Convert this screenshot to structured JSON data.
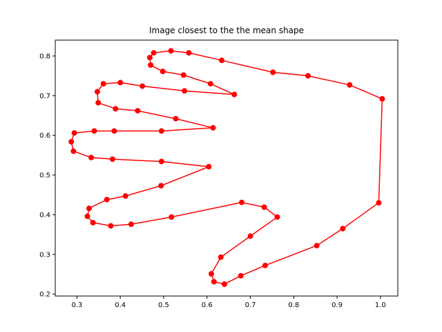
{
  "chart_data": {
    "type": "line",
    "title": "Image closest to the the mean shape",
    "xlabel": "",
    "ylabel": "",
    "xlim": [
      0.25,
      1.04
    ],
    "ylim": [
      0.195,
      0.84
    ],
    "x_ticks": [
      0.3,
      0.4,
      0.5,
      0.6,
      0.7,
      0.8,
      0.9,
      1.0
    ],
    "x_tick_labels": [
      "0.3",
      "0.4",
      "0.5",
      "0.6",
      "0.7",
      "0.8",
      "0.9",
      "1.0"
    ],
    "y_ticks": [
      0.2,
      0.3,
      0.4,
      0.5,
      0.6,
      0.7,
      0.8
    ],
    "y_tick_labels": [
      "0.2",
      "0.3",
      "0.4",
      "0.5",
      "0.6",
      "0.7",
      "0.8"
    ],
    "grid": false,
    "marker": "circle",
    "color": "#ff0000",
    "series": [
      {
        "x": [
          0.64,
          0.616,
          0.61,
          0.632,
          0.7,
          0.762,
          0.732,
          0.68,
          0.518,
          0.425,
          0.378,
          0.337,
          0.324,
          0.328,
          0.369,
          0.412,
          0.494,
          0.604,
          0.495,
          0.382,
          0.333,
          0.292,
          0.287,
          0.294,
          0.34,
          0.386,
          0.495,
          0.614,
          0.528,
          0.44,
          0.389,
          0.349,
          0.347,
          0.361,
          0.4,
          0.451,
          0.548,
          0.663,
          0.608,
          0.546,
          0.498,
          0.47,
          0.468,
          0.477,
          0.517,
          0.558,
          0.634,
          0.752,
          0.833,
          0.929,
          1.004,
          0.996,
          0.913,
          0.853,
          0.734,
          0.678,
          0.64
        ],
        "y": [
          0.225,
          0.231,
          0.251,
          0.293,
          0.346,
          0.394,
          0.419,
          0.431,
          0.394,
          0.376,
          0.372,
          0.38,
          0.396,
          0.416,
          0.438,
          0.447,
          0.473,
          0.521,
          0.534,
          0.54,
          0.544,
          0.56,
          0.584,
          0.606,
          0.611,
          0.611,
          0.611,
          0.619,
          0.642,
          0.662,
          0.667,
          0.682,
          0.71,
          0.73,
          0.733,
          0.724,
          0.712,
          0.703,
          0.73,
          0.752,
          0.761,
          0.777,
          0.796,
          0.808,
          0.813,
          0.808,
          0.789,
          0.759,
          0.75,
          0.727,
          0.692,
          0.43,
          0.365,
          0.322,
          0.272,
          0.246,
          0.225
        ]
      }
    ]
  }
}
